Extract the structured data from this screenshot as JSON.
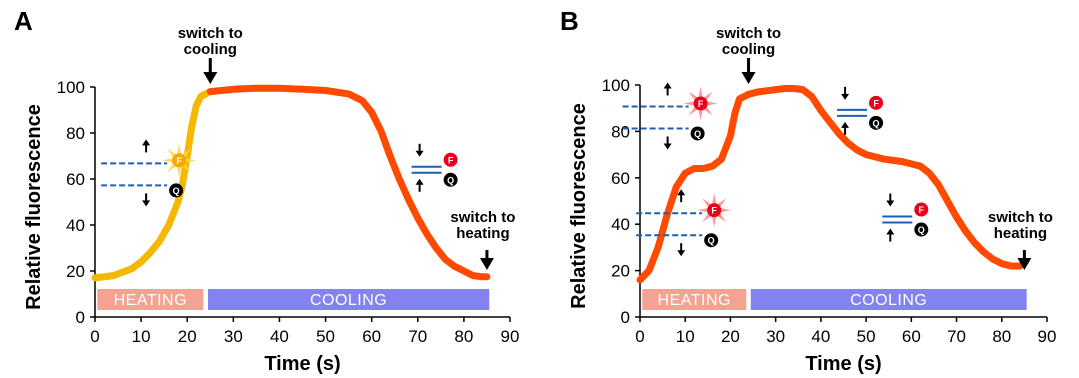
{
  "chart_data": [
    {
      "panel_label": "A",
      "type": "line",
      "xlabel": "Time (s)",
      "ylabel": "Relative fluorescence",
      "xlim": [
        0,
        90
      ],
      "ylim": [
        0,
        100
      ],
      "xticks": [
        0,
        10,
        20,
        30,
        40,
        50,
        60,
        70,
        80,
        90
      ],
      "yticks": [
        0,
        20,
        40,
        60,
        80,
        100
      ],
      "series": [
        {
          "phase": "heating",
          "color": "#f5b800",
          "x": [
            0,
            4,
            8,
            10,
            12,
            14,
            16,
            18,
            19,
            20,
            21,
            22,
            23,
            24,
            25
          ],
          "y": [
            17,
            18,
            21,
            24,
            28,
            33,
            40,
            50,
            58,
            70,
            83,
            92,
            96,
            97,
            98
          ]
        },
        {
          "phase": "cooling",
          "color": "#ff4a00",
          "x": [
            25,
            30,
            35,
            40,
            45,
            50,
            55,
            58,
            60,
            62,
            64,
            66,
            68,
            70,
            72,
            74,
            76,
            78,
            80,
            82,
            84,
            85
          ],
          "y": [
            98,
            99,
            99.5,
            99.5,
            99,
            98.5,
            97,
            94,
            89,
            81,
            70,
            60,
            51,
            43,
            36,
            30,
            25,
            22,
            20,
            18,
            17.5,
            17.5
          ]
        }
      ],
      "phase_bars": [
        {
          "label": "HEATING",
          "start": 0.5,
          "end": 23.5,
          "color": "#f4a292"
        },
        {
          "label": "COOLING",
          "start": 24.5,
          "end": 85.5,
          "color": "#8282f0"
        }
      ],
      "annotations": [
        {
          "text": [
            "switch to",
            "cooling"
          ],
          "x": 25
        },
        {
          "text": [
            "switch to",
            "heating"
          ],
          "x": 85
        }
      ],
      "insets": [
        {
          "kind": "open",
          "x": 10,
          "y": 62
        },
        {
          "kind": "closed",
          "x": 73,
          "y": 64
        }
      ]
    },
    {
      "panel_label": "B",
      "type": "line",
      "xlabel": "Time (s)",
      "ylabel": "Relative fluorescence",
      "xlim": [
        0,
        90
      ],
      "ylim": [
        0,
        100
      ],
      "xticks": [
        0,
        10,
        20,
        30,
        40,
        50,
        60,
        70,
        80,
        90
      ],
      "yticks": [
        0,
        20,
        40,
        60,
        80,
        100
      ],
      "series": [
        {
          "phase": "full",
          "color": "#ff4a00",
          "x": [
            0,
            2,
            4,
            6,
            8,
            10,
            12,
            14,
            16,
            18,
            20,
            21,
            22,
            23,
            24,
            26,
            28,
            30,
            32,
            34,
            36,
            38,
            40,
            42,
            44,
            46,
            48,
            50,
            52,
            54,
            56,
            58,
            60,
            62,
            64,
            66,
            68,
            70,
            72,
            74,
            76,
            78,
            80,
            82,
            84
          ],
          "y": [
            16,
            20,
            30,
            44,
            56,
            62,
            64,
            64,
            65,
            68,
            78,
            88,
            94,
            95,
            96,
            97,
            97.5,
            98,
            98.5,
            98.5,
            98,
            95,
            89,
            84,
            79,
            75,
            72,
            70,
            69,
            68,
            67.5,
            67,
            66,
            65,
            62,
            57,
            50,
            43,
            37,
            32,
            28,
            25,
            23,
            22,
            22
          ]
        }
      ],
      "phase_bars": [
        {
          "label": "HEATING",
          "start": 0.5,
          "end": 23.5,
          "color": "#f4a292"
        },
        {
          "label": "COOLING",
          "start": 24.5,
          "end": 85.5,
          "color": "#8282f0"
        }
      ],
      "annotations": [
        {
          "text": [
            "switch to",
            "cooling"
          ],
          "x": 24
        },
        {
          "text": [
            "switch to",
            "heating"
          ],
          "x": 85
        }
      ],
      "insets": [
        {
          "kind": "open",
          "x": 5,
          "y": 86
        },
        {
          "kind": "open",
          "x": 8,
          "y": 40
        },
        {
          "kind": "closed",
          "x": 48,
          "y": 88
        },
        {
          "kind": "closed",
          "x": 58,
          "y": 42
        }
      ]
    }
  ],
  "inset_labels": {
    "fluorophore": "F",
    "quencher": "Q"
  }
}
